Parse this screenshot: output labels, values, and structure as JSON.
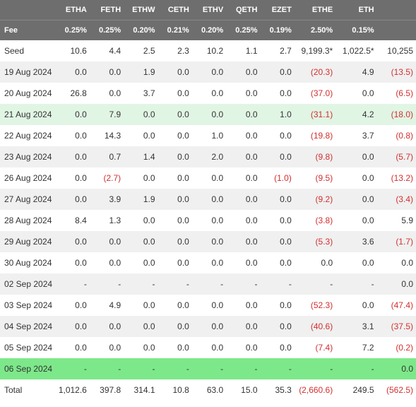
{
  "columns": [
    "",
    "ETHA",
    "FETH",
    "ETHW",
    "CETH",
    "ETHV",
    "QETH",
    "EZET",
    "ETHE",
    "ETH",
    ""
  ],
  "fees": [
    "Fee",
    "0.25%",
    "0.25%",
    "0.20%",
    "0.21%",
    "0.20%",
    "0.25%",
    "0.19%",
    "2.50%",
    "0.15%",
    ""
  ],
  "rows": [
    {
      "cls": "",
      "cells": [
        "Seed",
        "10.6",
        "4.4",
        "2.5",
        "2.3",
        "10.2",
        "1.1",
        "2.7",
        "9,199.3*",
        "1,022.5*",
        "10,255"
      ]
    },
    {
      "cls": "alt",
      "cells": [
        "19 Aug 2024",
        "0.0",
        "0.0",
        "1.9",
        "0.0",
        "0.0",
        "0.0",
        "0.0",
        {
          "v": "(20.3)",
          "neg": true
        },
        "4.9",
        {
          "v": "(13.5)",
          "neg": true
        }
      ]
    },
    {
      "cls": "",
      "cells": [
        "20 Aug 2024",
        "26.8",
        "0.0",
        "3.7",
        "0.0",
        "0.0",
        "0.0",
        "0.0",
        {
          "v": "(37.0)",
          "neg": true
        },
        "0.0",
        {
          "v": "(6.5)",
          "neg": true
        }
      ]
    },
    {
      "cls": "light-green",
      "cells": [
        "21 Aug 2024",
        "0.0",
        "7.9",
        "0.0",
        "0.0",
        "0.0",
        "0.0",
        "1.0",
        {
          "v": "(31.1)",
          "neg": true
        },
        "4.2",
        {
          "v": "(18.0)",
          "neg": true
        }
      ]
    },
    {
      "cls": "",
      "cells": [
        "22 Aug 2024",
        "0.0",
        "14.3",
        "0.0",
        "0.0",
        "1.0",
        "0.0",
        "0.0",
        {
          "v": "(19.8)",
          "neg": true
        },
        "3.7",
        {
          "v": "(0.8)",
          "neg": true
        }
      ]
    },
    {
      "cls": "alt",
      "cells": [
        "23 Aug 2024",
        "0.0",
        "0.7",
        "1.4",
        "0.0",
        "2.0",
        "0.0",
        "0.0",
        {
          "v": "(9.8)",
          "neg": true
        },
        "0.0",
        {
          "v": "(5.7)",
          "neg": true
        }
      ]
    },
    {
      "cls": "",
      "cells": [
        "26 Aug 2024",
        "0.0",
        {
          "v": "(2.7)",
          "neg": true
        },
        "0.0",
        "0.0",
        "0.0",
        "0.0",
        {
          "v": "(1.0)",
          "neg": true
        },
        {
          "v": "(9.5)",
          "neg": true
        },
        "0.0",
        {
          "v": "(13.2)",
          "neg": true
        }
      ]
    },
    {
      "cls": "alt",
      "cells": [
        "27 Aug 2024",
        "0.0",
        "3.9",
        "1.9",
        "0.0",
        "0.0",
        "0.0",
        "0.0",
        {
          "v": "(9.2)",
          "neg": true
        },
        "0.0",
        {
          "v": "(3.4)",
          "neg": true
        }
      ]
    },
    {
      "cls": "",
      "cells": [
        "28 Aug 2024",
        "8.4",
        "1.3",
        "0.0",
        "0.0",
        "0.0",
        "0.0",
        "0.0",
        {
          "v": "(3.8)",
          "neg": true
        },
        "0.0",
        "5.9"
      ]
    },
    {
      "cls": "alt",
      "cells": [
        "29 Aug 2024",
        "0.0",
        "0.0",
        "0.0",
        "0.0",
        "0.0",
        "0.0",
        "0.0",
        {
          "v": "(5.3)",
          "neg": true
        },
        "3.6",
        {
          "v": "(1.7)",
          "neg": true
        }
      ]
    },
    {
      "cls": "",
      "cells": [
        "30 Aug 2024",
        "0.0",
        "0.0",
        "0.0",
        "0.0",
        "0.0",
        "0.0",
        "0.0",
        "0.0",
        "0.0",
        "0.0"
      ]
    },
    {
      "cls": "alt",
      "cells": [
        "02 Sep 2024",
        "-",
        "-",
        "-",
        "-",
        "-",
        "-",
        "-",
        "-",
        "-",
        "0.0"
      ]
    },
    {
      "cls": "",
      "cells": [
        "03 Sep 2024",
        "0.0",
        "4.9",
        "0.0",
        "0.0",
        "0.0",
        "0.0",
        "0.0",
        {
          "v": "(52.3)",
          "neg": true
        },
        "0.0",
        {
          "v": "(47.4)",
          "neg": true
        }
      ]
    },
    {
      "cls": "alt",
      "cells": [
        "04 Sep 2024",
        "0.0",
        "0.0",
        "0.0",
        "0.0",
        "0.0",
        "0.0",
        "0.0",
        {
          "v": "(40.6)",
          "neg": true
        },
        "3.1",
        {
          "v": "(37.5)",
          "neg": true
        }
      ]
    },
    {
      "cls": "",
      "cells": [
        "05 Sep 2024",
        "0.0",
        "0.0",
        "0.0",
        "0.0",
        "0.0",
        "0.0",
        "0.0",
        {
          "v": "(7.4)",
          "neg": true
        },
        "7.2",
        {
          "v": "(0.2)",
          "neg": true
        }
      ]
    },
    {
      "cls": "green",
      "cells": [
        "06 Sep 2024",
        "-",
        "-",
        "-",
        "-",
        "-",
        "-",
        "-",
        "-",
        "-",
        "0.0"
      ]
    },
    {
      "cls": "",
      "cells": [
        "Total",
        "1,012.6",
        "397.8",
        "314.1",
        "10.8",
        "63.0",
        "15.0",
        "35.3",
        {
          "v": "(2,660.6)",
          "neg": true
        },
        "249.5",
        {
          "v": "(562.5)",
          "neg": true
        }
      ]
    }
  ]
}
